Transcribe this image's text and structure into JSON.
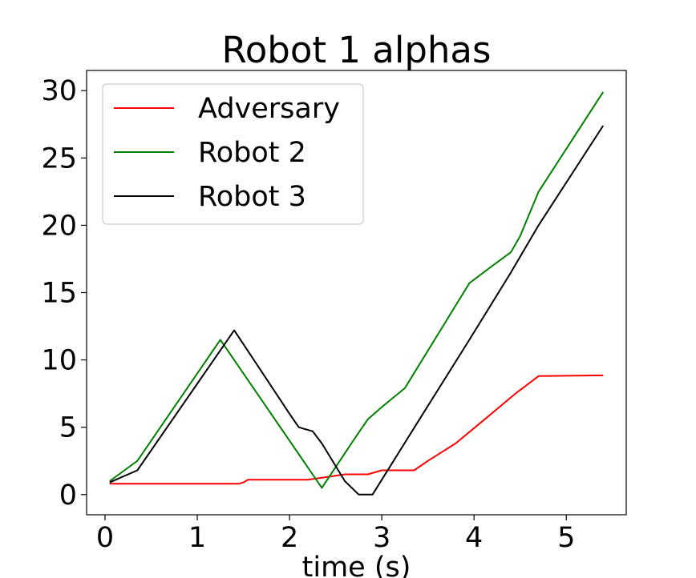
{
  "chart_data": {
    "type": "line",
    "title": "Robot 1 alphas",
    "xlabel": "time (s)",
    "ylabel": "",
    "xlim": [
      -0.2,
      5.65
    ],
    "ylim": [
      -1.5,
      31.5
    ],
    "xticks": [
      0,
      1,
      2,
      3,
      4,
      5
    ],
    "yticks": [
      0,
      5,
      10,
      15,
      20,
      25,
      30
    ],
    "grid": false,
    "legend_position": "upper-left",
    "series": [
      {
        "name": "Adversary",
        "color": "#ff0000",
        "x": [
          0.05,
          0.6,
          1.2,
          1.45,
          1.5,
          1.55,
          1.6,
          2.2,
          2.5,
          2.6,
          2.85,
          3.0,
          3.35,
          3.5,
          3.8,
          4.1,
          4.45,
          4.7,
          5.4
        ],
        "y": [
          0.8,
          0.8,
          0.8,
          0.8,
          0.9,
          1.1,
          1.1,
          1.1,
          1.4,
          1.5,
          1.5,
          1.8,
          1.8,
          2.5,
          3.8,
          5.5,
          7.5,
          8.8,
          8.85
        ]
      },
      {
        "name": "Robot 2",
        "color": "#008000",
        "x": [
          0.05,
          0.35,
          1.25,
          2.35,
          2.7,
          2.85,
          3.0,
          3.25,
          3.95,
          4.2,
          4.4,
          4.5,
          4.7,
          5.4
        ],
        "y": [
          1.0,
          2.5,
          11.5,
          0.5,
          4.1,
          5.6,
          6.5,
          7.9,
          15.7,
          17.0,
          18.0,
          19.2,
          22.5,
          29.9
        ]
      },
      {
        "name": "Robot 3",
        "color": "#000000",
        "x": [
          0.05,
          0.35,
          1.4,
          2.0,
          2.1,
          2.15,
          2.25,
          2.35,
          2.6,
          2.75,
          2.82,
          2.9,
          3.4,
          3.95,
          4.4,
          4.7,
          5.4
        ],
        "y": [
          0.9,
          1.8,
          12.2,
          6.0,
          5.0,
          4.9,
          4.7,
          3.8,
          1.0,
          0.0,
          0.0,
          0.0,
          5.5,
          11.5,
          16.5,
          20.0,
          27.4
        ]
      }
    ]
  }
}
